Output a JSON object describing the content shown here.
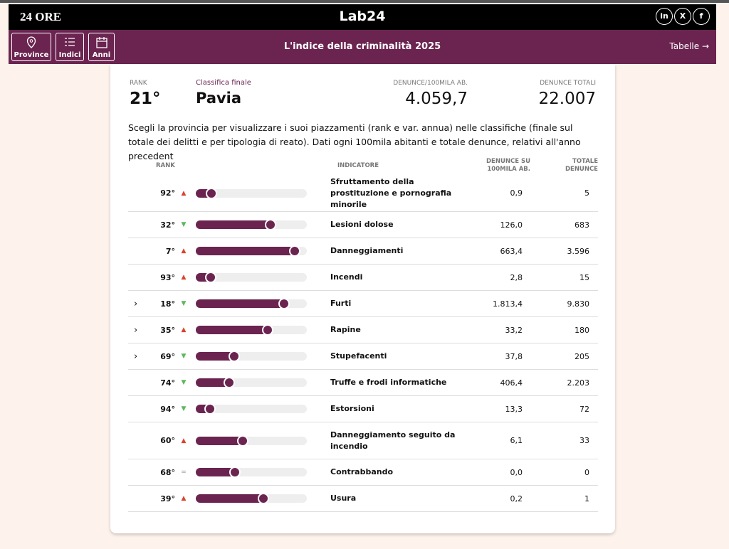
{
  "header": {
    "logo": "24 ORE",
    "brand": "Lab24",
    "social": [
      "in",
      "X",
      "f"
    ]
  },
  "nav": {
    "buttons": [
      "Province",
      "Indici",
      "Anni"
    ],
    "title": "L'indice della criminalità 2025",
    "link": "Tabelle"
  },
  "summary": {
    "rank_label": "RANK",
    "rank": "21°",
    "class_label": "Classifica finale",
    "province": "Pavia",
    "per100k_label": "DENUNCE/100MILA AB.",
    "per100k": "4.059,7",
    "total_label": "DENUNCE TOTALI",
    "total": "22.007"
  },
  "description": "Scegli la provincia per visualizzare i suoi piazzamenti (rank e var. annua) nelle classifiche (finale sul totale dei delitti e per tipologia di reato). Dati ogni 100mila abitanti e totale denunce, relativi all'anno precedent",
  "table": {
    "headers": [
      "RANK",
      "INDICATORE",
      "DENUNCE SU 100MILA AB.",
      "TOTALE DENUNCE"
    ],
    "rows": [
      {
        "rank": 92,
        "rank_label": "92°",
        "trend": "up",
        "indicator": "Sfruttamento della prostituzione e pornografia minorile",
        "per100k": "0,9",
        "total": "5",
        "expandable": false
      },
      {
        "rank": 32,
        "rank_label": "32°",
        "trend": "down",
        "indicator": "Lesioni dolose",
        "per100k": "126,0",
        "total": "683",
        "expandable": false
      },
      {
        "rank": 7,
        "rank_label": "7°",
        "trend": "up",
        "indicator": "Danneggiamenti",
        "per100k": "663,4",
        "total": "3.596",
        "expandable": false
      },
      {
        "rank": 93,
        "rank_label": "93°",
        "trend": "up",
        "indicator": "Incendi",
        "per100k": "2,8",
        "total": "15",
        "expandable": false
      },
      {
        "rank": 18,
        "rank_label": "18°",
        "trend": "down",
        "indicator": "Furti",
        "per100k": "1.813,4",
        "total": "9.830",
        "expandable": true
      },
      {
        "rank": 35,
        "rank_label": "35°",
        "trend": "up",
        "indicator": "Rapine",
        "per100k": "33,2",
        "total": "180",
        "expandable": true
      },
      {
        "rank": 69,
        "rank_label": "69°",
        "trend": "down",
        "indicator": "Stupefacenti",
        "per100k": "37,8",
        "total": "205",
        "expandable": true
      },
      {
        "rank": 74,
        "rank_label": "74°",
        "trend": "down",
        "indicator": "Truffe e frodi informatiche",
        "per100k": "406,4",
        "total": "2.203",
        "expandable": false
      },
      {
        "rank": 94,
        "rank_label": "94°",
        "trend": "down",
        "indicator": "Estorsioni",
        "per100k": "13,3",
        "total": "72",
        "expandable": false
      },
      {
        "rank": 60,
        "rank_label": "60°",
        "trend": "up",
        "indicator": "Danneggiamento seguito da incendio",
        "per100k": "6,1",
        "total": "33",
        "expandable": false
      },
      {
        "rank": 68,
        "rank_label": "68°",
        "trend": "same",
        "indicator": "Contrabbando",
        "per100k": "0,0",
        "total": "0",
        "expandable": false
      },
      {
        "rank": 39,
        "rank_label": "39°",
        "trend": "up",
        "indicator": "Usura",
        "per100k": "0,2",
        "total": "1",
        "expandable": false
      }
    ]
  }
}
